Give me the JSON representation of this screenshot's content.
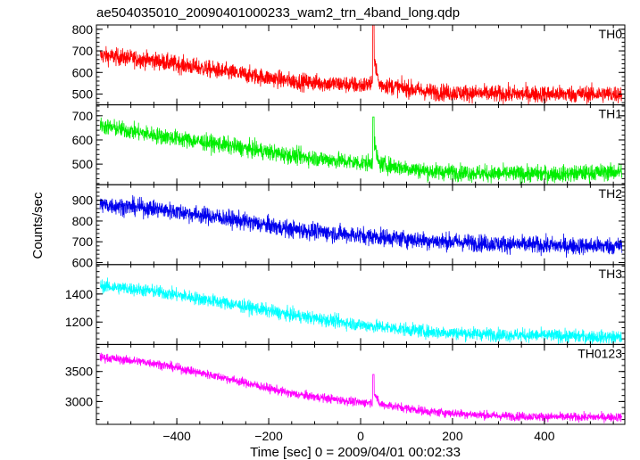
{
  "chart_data": {
    "type": "line",
    "title": "ae504035010_20090401000233_wam2_trn_4band_long.qdp",
    "xlabel": "Time [sec] 0 = 2009/04/01 00:02:33",
    "ylabel": "Counts/sec",
    "xlim": [
      -575,
      575
    ],
    "xticks": [
      -400,
      -200,
      0,
      200,
      400
    ],
    "grid": false,
    "panels": [
      {
        "name": "TH0",
        "color": "#ff0000",
        "ylim": [
          450,
          820
        ],
        "yticks": [
          500,
          600,
          700,
          800
        ],
        "trend": [
          [
            -570,
            680
          ],
          [
            -450,
            655
          ],
          [
            -300,
            605
          ],
          [
            -150,
            560
          ],
          [
            0,
            540
          ],
          [
            25,
            545
          ],
          [
            30,
            660
          ],
          [
            40,
            545
          ],
          [
            150,
            510
          ],
          [
            300,
            500
          ],
          [
            450,
            500
          ],
          [
            570,
            500
          ]
        ],
        "noise": 38,
        "spike": {
          "x": 28,
          "peak": 820
        }
      },
      {
        "name": "TH1",
        "color": "#00ee00",
        "ylim": [
          415,
          745
        ],
        "yticks": [
          500,
          600,
          700
        ],
        "trend": [
          [
            -570,
            660
          ],
          [
            -450,
            620
          ],
          [
            -300,
            580
          ],
          [
            -150,
            535
          ],
          [
            0,
            505
          ],
          [
            25,
            505
          ],
          [
            30,
            580
          ],
          [
            40,
            500
          ],
          [
            150,
            470
          ],
          [
            300,
            460
          ],
          [
            450,
            460
          ],
          [
            570,
            470
          ]
        ],
        "noise": 33,
        "spike": {
          "x": 28,
          "peak": 695
        }
      },
      {
        "name": "TH2",
        "color": "#0000ee",
        "ylim": [
          590,
          975
        ],
        "yticks": [
          600,
          700,
          800,
          900
        ],
        "trend": [
          [
            -570,
            880
          ],
          [
            -450,
            860
          ],
          [
            -300,
            815
          ],
          [
            -150,
            760
          ],
          [
            0,
            730
          ],
          [
            150,
            705
          ],
          [
            300,
            690
          ],
          [
            450,
            680
          ],
          [
            570,
            680
          ]
        ],
        "noise": 40,
        "spike": null
      },
      {
        "name": "TH3",
        "color": "#00ffff",
        "ylim": [
          1040,
          1610
        ],
        "yticks": [
          1200,
          1400
        ],
        "trend": [
          [
            -570,
            1460
          ],
          [
            -450,
            1420
          ],
          [
            -300,
            1340
          ],
          [
            -150,
            1250
          ],
          [
            0,
            1180
          ],
          [
            150,
            1130
          ],
          [
            300,
            1110
          ],
          [
            450,
            1100
          ],
          [
            570,
            1090
          ]
        ],
        "noise": 45,
        "spike": null
      },
      {
        "name": "TH0123",
        "color": "#ff00ff",
        "ylim": [
          2620,
          3950
        ],
        "yticks": [
          3000,
          3500
        ],
        "trend": [
          [
            -570,
            3740
          ],
          [
            -450,
            3640
          ],
          [
            -300,
            3400
          ],
          [
            -150,
            3130
          ],
          [
            0,
            2980
          ],
          [
            25,
            2990
          ],
          [
            30,
            3160
          ],
          [
            40,
            2960
          ],
          [
            150,
            2830
          ],
          [
            300,
            2760
          ],
          [
            450,
            2740
          ],
          [
            570,
            2740
          ]
        ],
        "noise": 70,
        "spike": {
          "x": 28,
          "peak": 3450
        }
      }
    ]
  }
}
